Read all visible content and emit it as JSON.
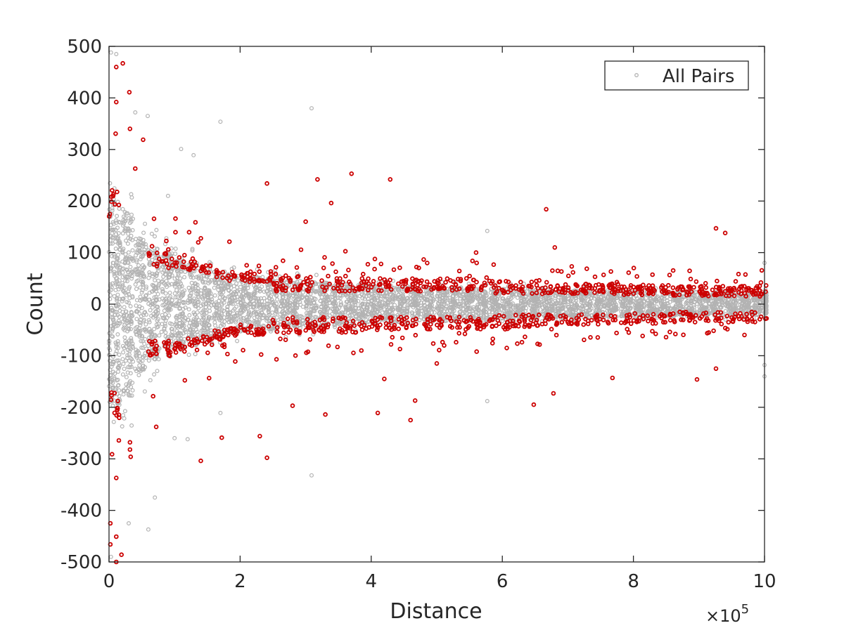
{
  "chart_data": {
    "type": "scatter",
    "title": "",
    "xlabel": "Distance",
    "ylabel": "Count",
    "x_exponent_label": "×10",
    "x_exponent_power": "5",
    "xlim": [
      0,
      1000000
    ],
    "ylim": [
      -500,
      500
    ],
    "xticks": [
      0,
      200000,
      400000,
      600000,
      800000,
      1000000
    ],
    "xtick_labels": [
      "0",
      "2",
      "4",
      "6",
      "8",
      "10"
    ],
    "yticks": [
      500,
      400,
      300,
      200,
      100,
      0,
      -100,
      -200,
      -300,
      -400,
      -500
    ],
    "ytick_labels": [
      "500",
      "400",
      "300",
      "200",
      "100",
      "0",
      "-100",
      "-200",
      "-300",
      "-400",
      "-500"
    ],
    "grid": false,
    "legend": {
      "position": "top-right",
      "entries": [
        "All Pairs"
      ]
    },
    "colors": {
      "all_pairs": "#b3b3b3",
      "highlighted": "#cc0000",
      "axis": "#262626"
    },
    "column_spacing": 20000,
    "column_x_start": 0,
    "gray_halfwidth": [
      200,
      180,
      130,
      110,
      100,
      90,
      80,
      70,
      65,
      60,
      55,
      55,
      50,
      48,
      46,
      45,
      42,
      40,
      40,
      38,
      38,
      37,
      36,
      35,
      34,
      34,
      33,
      32,
      31,
      30,
      30,
      30,
      29,
      28,
      28,
      27,
      27,
      27,
      26,
      26,
      25,
      25,
      24,
      24,
      24,
      23,
      23,
      23,
      22,
      22,
      22
    ],
    "red_band_inner": [
      170,
      0,
      0,
      70,
      70,
      70,
      65,
      60,
      50,
      45,
      40,
      40,
      25,
      25,
      25,
      25,
      25,
      25,
      25,
      25,
      25,
      25,
      25,
      25,
      25,
      25,
      25,
      25,
      25,
      20,
      20,
      20,
      20,
      20,
      20,
      20,
      20,
      20,
      20,
      18,
      18,
      18,
      18,
      15,
      15,
      15,
      15,
      15,
      15,
      15,
      15
    ],
    "red_band_outer": [
      230,
      0,
      0,
      100,
      100,
      95,
      90,
      80,
      70,
      65,
      60,
      60,
      60,
      60,
      60,
      55,
      55,
      55,
      55,
      50,
      50,
      50,
      50,
      50,
      50,
      50,
      50,
      50,
      50,
      45,
      45,
      45,
      45,
      40,
      40,
      40,
      40,
      40,
      40,
      38,
      38,
      38,
      38,
      35,
      35,
      35,
      35,
      35,
      35,
      35,
      35
    ],
    "highlighted_outliers": [
      [
        11000,
        460
      ],
      [
        21000,
        467
      ],
      [
        31000,
        411
      ],
      [
        11000,
        392
      ],
      [
        52000,
        319
      ],
      [
        32000,
        340
      ],
      [
        40000,
        263
      ],
      [
        241000,
        234
      ],
      [
        318000,
        242
      ],
      [
        370000,
        253
      ],
      [
        429000,
        242
      ],
      [
        667000,
        184
      ],
      [
        339000,
        196
      ],
      [
        926000,
        147
      ],
      [
        300000,
        160
      ],
      [
        560000,
        100
      ],
      [
        680000,
        110
      ],
      [
        940000,
        138
      ],
      [
        140000,
        -304
      ],
      [
        241000,
        -298
      ],
      [
        230000,
        -256
      ],
      [
        172000,
        -259
      ],
      [
        72000,
        -238
      ],
      [
        330000,
        -214
      ],
      [
        410000,
        -211
      ],
      [
        460000,
        -225
      ],
      [
        467000,
        -187
      ],
      [
        648000,
        -195
      ],
      [
        678000,
        -173
      ],
      [
        768000,
        -143
      ],
      [
        897000,
        -146
      ],
      [
        926000,
        -125
      ],
      [
        11000,
        -500
      ],
      [
        19000,
        -486
      ],
      [
        11000,
        -451
      ],
      [
        2000,
        -425
      ],
      [
        2000,
        -466
      ],
      [
        11000,
        -337
      ],
      [
        32000,
        -282
      ],
      [
        32000,
        -268
      ],
      [
        33000,
        -296
      ],
      [
        280000,
        -197
      ],
      [
        420000,
        -145
      ],
      [
        500000,
        -115
      ]
    ],
    "all_pairs_outliers": [
      [
        309000,
        380
      ],
      [
        309000,
        -332
      ],
      [
        170000,
        354
      ],
      [
        59000,
        365
      ],
      [
        40000,
        372
      ],
      [
        110000,
        301
      ],
      [
        129000,
        289
      ],
      [
        60000,
        -437
      ],
      [
        70000,
        -375
      ],
      [
        3000,
        488
      ],
      [
        11000,
        485
      ],
      [
        577000,
        142
      ],
      [
        577000,
        -188
      ],
      [
        170000,
        -211
      ],
      [
        1000000,
        -118
      ],
      [
        1000000,
        -140
      ],
      [
        1000000,
        80
      ],
      [
        3000,
        -490
      ],
      [
        30000,
        -425
      ],
      [
        90000,
        210
      ],
      [
        100000,
        -260
      ],
      [
        120000,
        -262
      ]
    ]
  }
}
